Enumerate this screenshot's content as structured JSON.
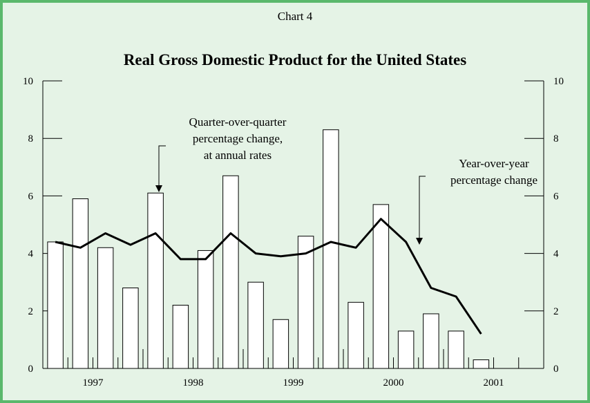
{
  "header": {
    "chart_number": "Chart 4",
    "title": "Real Gross Domestic Product for the United States"
  },
  "annotations": {
    "bars_label": [
      "Quarter-over-quarter",
      "percentage change,",
      "at annual rates"
    ],
    "line_label": [
      "Year-over-year",
      "percentage change"
    ]
  },
  "chart_data": {
    "type": "bar",
    "title": "Real Gross Domestic Product for the United States",
    "xlabel": "",
    "ylabel": "",
    "ylim": [
      0,
      10
    ],
    "y_ticks": [
      0,
      2,
      4,
      6,
      8,
      10
    ],
    "x_tick_labels": [
      "1997",
      "1998",
      "1999",
      "2000",
      "2001"
    ],
    "categories": [
      "1997 Q1",
      "1997 Q2",
      "1997 Q3",
      "1997 Q4",
      "1998 Q1",
      "1998 Q2",
      "1998 Q3",
      "1998 Q4",
      "1999 Q1",
      "1999 Q2",
      "1999 Q3",
      "1999 Q4",
      "2000 Q1",
      "2000 Q2",
      "2000 Q3",
      "2000 Q4",
      "2001 Q1",
      "2001 Q2",
      "2001 Q3",
      "2001 Q4"
    ],
    "series": [
      {
        "name": "Quarter-over-quarter percentage change, at annual rates",
        "type": "bar",
        "values": [
          4.4,
          5.9,
          4.2,
          2.8,
          6.1,
          2.2,
          4.1,
          6.7,
          3.0,
          1.7,
          4.6,
          8.3,
          2.3,
          5.7,
          1.3,
          1.9,
          1.3,
          0.3,
          null,
          null
        ]
      },
      {
        "name": "Year-over-year percentage change",
        "type": "line",
        "values": [
          4.4,
          4.2,
          4.7,
          4.3,
          4.7,
          3.8,
          3.8,
          4.7,
          4.0,
          3.9,
          4.0,
          4.4,
          4.2,
          5.2,
          4.4,
          2.8,
          2.5,
          1.2,
          null,
          null
        ]
      }
    ],
    "grid": false,
    "colors": {
      "bar_fill": "#ffffff",
      "bar_stroke": "#000000",
      "line": "#000000",
      "background": "#e5f3e6",
      "border": "#5ab86c"
    }
  }
}
